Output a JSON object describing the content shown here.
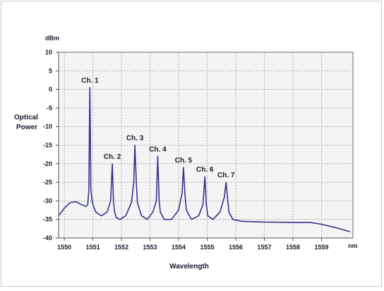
{
  "chart_data": {
    "type": "line",
    "title": "",
    "xlabel": "Wavelength",
    "x_unit": "nm",
    "ylabel": [
      "Optical",
      "Power"
    ],
    "y_unit": "dBm",
    "xlim": [
      1549.8,
      1560.1
    ],
    "ylim": [
      -40,
      10
    ],
    "xticks": [
      1550,
      1551,
      1552,
      1553,
      1554,
      1555,
      1556,
      1557,
      1558,
      1559
    ],
    "yticks": [
      10,
      5,
      0,
      -5,
      -10,
      -15,
      -20,
      -25,
      -30,
      -35,
      -40
    ],
    "grid": true,
    "series": [
      {
        "color": "#34348e",
        "x": [
          1549.8,
          1550.0,
          1550.2,
          1550.4,
          1550.6,
          1550.75,
          1550.82,
          1550.86,
          1550.88,
          1550.895,
          1550.91,
          1550.93,
          1550.98,
          1551.1,
          1551.3,
          1551.5,
          1551.62,
          1551.68,
          1551.72,
          1551.76,
          1551.82,
          1551.95,
          1552.15,
          1552.35,
          1552.43,
          1552.47,
          1552.52,
          1552.56,
          1552.7,
          1552.9,
          1553.1,
          1553.22,
          1553.27,
          1553.32,
          1553.36,
          1553.5,
          1553.75,
          1554.0,
          1554.12,
          1554.17,
          1554.22,
          1554.27,
          1554.45,
          1554.7,
          1554.85,
          1554.92,
          1554.97,
          1555.02,
          1555.2,
          1555.45,
          1555.6,
          1555.66,
          1555.71,
          1555.76,
          1555.9,
          1556.2,
          1557.0,
          1558.0,
          1558.6,
          1559.0,
          1559.5,
          1560.0
        ],
        "y": [
          -34,
          -32,
          -30.5,
          -30.2,
          -31,
          -31.5,
          -31,
          -27,
          -10,
          0.5,
          -10,
          -27,
          -30.5,
          -33,
          -34,
          -33,
          -30,
          -20,
          -30,
          -33,
          -34.5,
          -35,
          -34,
          -30.5,
          -25,
          -15,
          -25,
          -30.5,
          -34,
          -35,
          -33,
          -30,
          -18,
          -30,
          -33,
          -35,
          -35,
          -32.5,
          -28,
          -21,
          -28,
          -32.5,
          -35,
          -34,
          -31,
          -23.5,
          -31,
          -34,
          -35,
          -33,
          -29,
          -25,
          -29,
          -33,
          -35,
          -35.5,
          -35.7,
          -35.8,
          -35.8,
          -36.3,
          -37.2,
          -38.3
        ]
      }
    ],
    "annotations": [
      {
        "text": "Ch. 1",
        "x": 1550.895,
        "y": 0.5
      },
      {
        "text": "Ch. 2",
        "x": 1551.68,
        "y": -20
      },
      {
        "text": "Ch. 3",
        "x": 1552.47,
        "y": -15
      },
      {
        "text": "Ch. 4",
        "x": 1553.27,
        "y": -18
      },
      {
        "text": "Ch. 5",
        "x": 1554.17,
        "y": -21
      },
      {
        "text": "Ch. 6",
        "x": 1554.92,
        "y": -23.5
      },
      {
        "text": "Ch. 7",
        "x": 1555.66,
        "y": -25
      }
    ]
  }
}
